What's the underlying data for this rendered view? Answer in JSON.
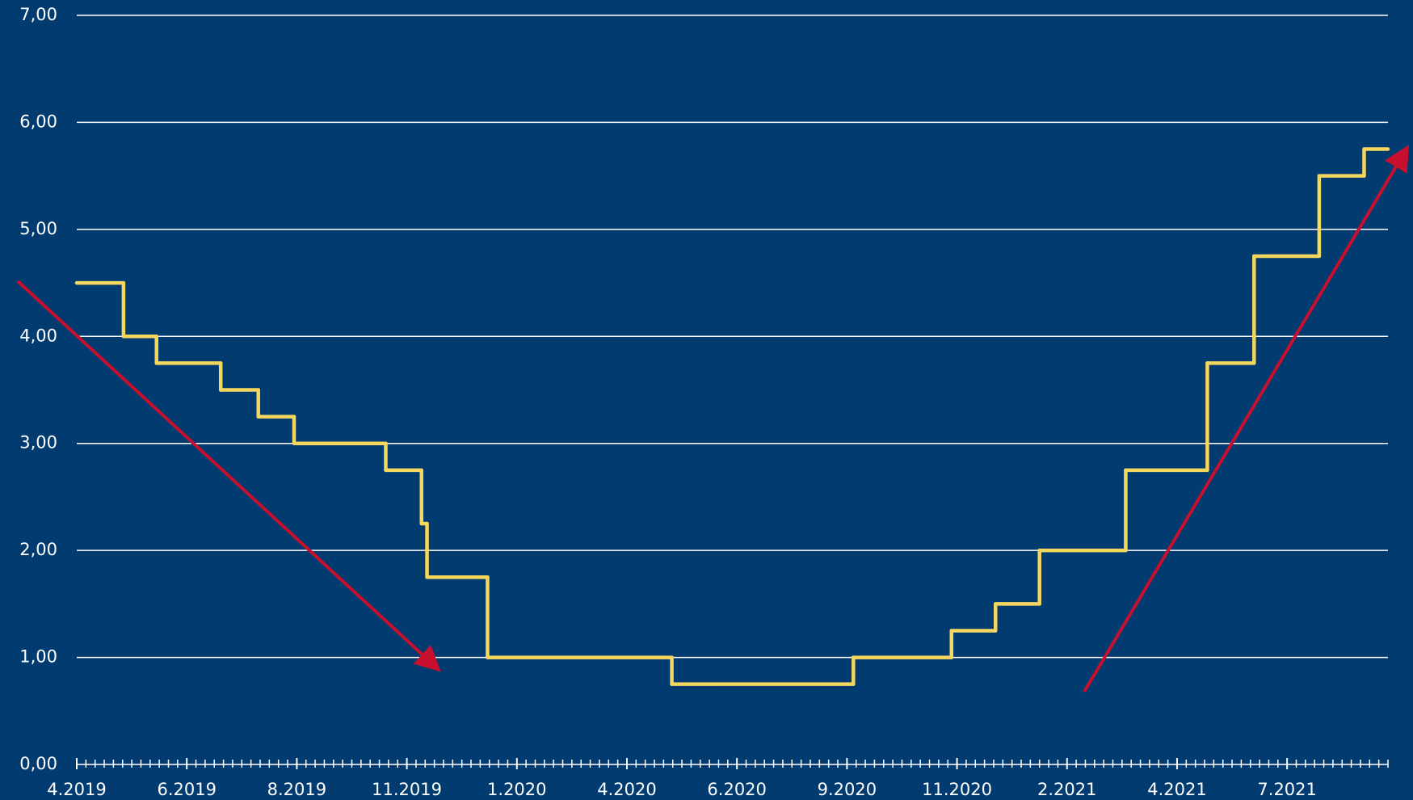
{
  "chart_data": {
    "type": "step",
    "x": [
      0,
      5.1,
      8.7,
      15.7,
      19.8,
      23.7,
      33.7,
      37.6,
      38.2,
      44.8,
      64.9,
      84.7,
      95.4,
      100.2,
      105.0,
      114.4,
      123.3,
      128.4,
      135.5,
      140.4
    ],
    "series": [
      {
        "color": "#f6d75e",
        "values": [
          4.5,
          4.0,
          3.75,
          3.5,
          3.25,
          3.0,
          2.75,
          2.25,
          1.75,
          1.0,
          0.75,
          1.0,
          1.25,
          1.5,
          2.0,
          2.75,
          3.75,
          4.75,
          5.5,
          5.75
        ]
      }
    ],
    "xlim": [
      0,
      143
    ],
    "xticks": [
      {
        "value": 0,
        "label": "4.2019"
      },
      {
        "value": 12,
        "label": "6.2019"
      },
      {
        "value": 24,
        "label": "8.2019"
      },
      {
        "value": 36,
        "label": "11.2019"
      },
      {
        "value": 48,
        "label": "1.2020"
      },
      {
        "value": 60,
        "label": "4.2020"
      },
      {
        "value": 72,
        "label": "6.2020"
      },
      {
        "value": 84,
        "label": "9.2020"
      },
      {
        "value": 96,
        "label": "11.2020"
      },
      {
        "value": 108,
        "label": "2.2021"
      },
      {
        "value": 120,
        "label": "4.2021"
      },
      {
        "value": 132,
        "label": "7.2021"
      }
    ],
    "ylim": [
      0,
      7
    ],
    "yticks": [
      {
        "value": 0,
        "label": "0,00"
      },
      {
        "value": 1,
        "label": "1,00"
      },
      {
        "value": 2,
        "label": "2,00"
      },
      {
        "value": 3,
        "label": "3,00"
      },
      {
        "value": 4,
        "label": "4,00"
      },
      {
        "value": 5,
        "label": "5,00"
      },
      {
        "value": 6,
        "label": "6,00"
      },
      {
        "value": 7,
        "label": "7,00"
      }
    ],
    "grid": true
  }
}
